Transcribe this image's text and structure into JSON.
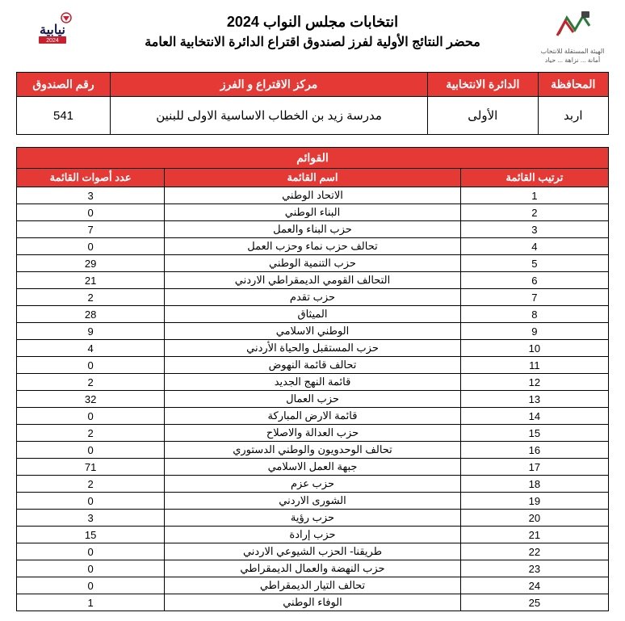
{
  "header": {
    "title_main": "انتخابات مجلس النواب 2024",
    "title_sub": "محضر النتائج الأولية لفرز لصندوق اقتراع الدائرة الانتخابية العامة",
    "logo_right_text": "الهيئة المستقلة للانتخاب",
    "logo_right_sub": "أمانة ... نزاهة ... حياد",
    "logo_left_text": "نيابية 2024"
  },
  "info": {
    "headers": {
      "governorate": "المحافظة",
      "district": "الدائرة الانتخابية",
      "center": "مركز الاقتراع و الفرز",
      "box": "رقم الصندوق"
    },
    "values": {
      "governorate": "اربد",
      "district": "الأولى",
      "center": "مدرسة زيد بن الخطاب الاساسية الاولى للبنين",
      "box": "541"
    }
  },
  "results": {
    "super_header": "القوائم",
    "headers": {
      "rank": "ترتيب القائمة",
      "name": "اسم القائمة",
      "votes": "عدد أصوات القائمة"
    },
    "rows": [
      {
        "rank": "1",
        "name": "الاتحاد الوطني",
        "votes": "3"
      },
      {
        "rank": "2",
        "name": "البناء الوطني",
        "votes": "0"
      },
      {
        "rank": "3",
        "name": "حزب البناء والعمل",
        "votes": "7"
      },
      {
        "rank": "4",
        "name": "تحالف حزب نماء وحزب العمل",
        "votes": "0"
      },
      {
        "rank": "5",
        "name": "حزب التنمية الوطني",
        "votes": "29"
      },
      {
        "rank": "6",
        "name": "التحالف القومي الديمقراطي الاردني",
        "votes": "21"
      },
      {
        "rank": "7",
        "name": "حزب تقدم",
        "votes": "2"
      },
      {
        "rank": "8",
        "name": "الميثاق",
        "votes": "28"
      },
      {
        "rank": "9",
        "name": "الوطني الاسلامي",
        "votes": "9"
      },
      {
        "rank": "10",
        "name": "حزب المستقبل والحياة الأردني",
        "votes": "4"
      },
      {
        "rank": "11",
        "name": "تحالف قائمة النهوض",
        "votes": "0"
      },
      {
        "rank": "12",
        "name": "قائمة النهج الجديد",
        "votes": "2"
      },
      {
        "rank": "13",
        "name": "حزب العمال",
        "votes": "32"
      },
      {
        "rank": "14",
        "name": "قائمة الارض المباركة",
        "votes": "0"
      },
      {
        "rank": "15",
        "name": "حزب العدالة والاصلاح",
        "votes": "2"
      },
      {
        "rank": "16",
        "name": "تحالف الوحدويون والوطني الدستوري",
        "votes": "0"
      },
      {
        "rank": "17",
        "name": "جبهة العمل الاسلامي",
        "votes": "71"
      },
      {
        "rank": "18",
        "name": "حزب عزم",
        "votes": "2"
      },
      {
        "rank": "19",
        "name": "الشورى الاردني",
        "votes": "0"
      },
      {
        "rank": "20",
        "name": "حزب رؤية",
        "votes": "3"
      },
      {
        "rank": "21",
        "name": "حزب إرادة",
        "votes": "15"
      },
      {
        "rank": "22",
        "name": "طريقنا- الحزب الشيوعي الاردني",
        "votes": "0"
      },
      {
        "rank": "23",
        "name": "حزب النهضة والعمال الديمقراطي",
        "votes": "0"
      },
      {
        "rank": "24",
        "name": "تحالف التيار الديمقراطي",
        "votes": "0"
      },
      {
        "rank": "25",
        "name": "الوفاء الوطني",
        "votes": "1"
      }
    ]
  },
  "colors": {
    "header_bg": "#e53935",
    "header_text": "#ffffff",
    "border": "#000000"
  }
}
